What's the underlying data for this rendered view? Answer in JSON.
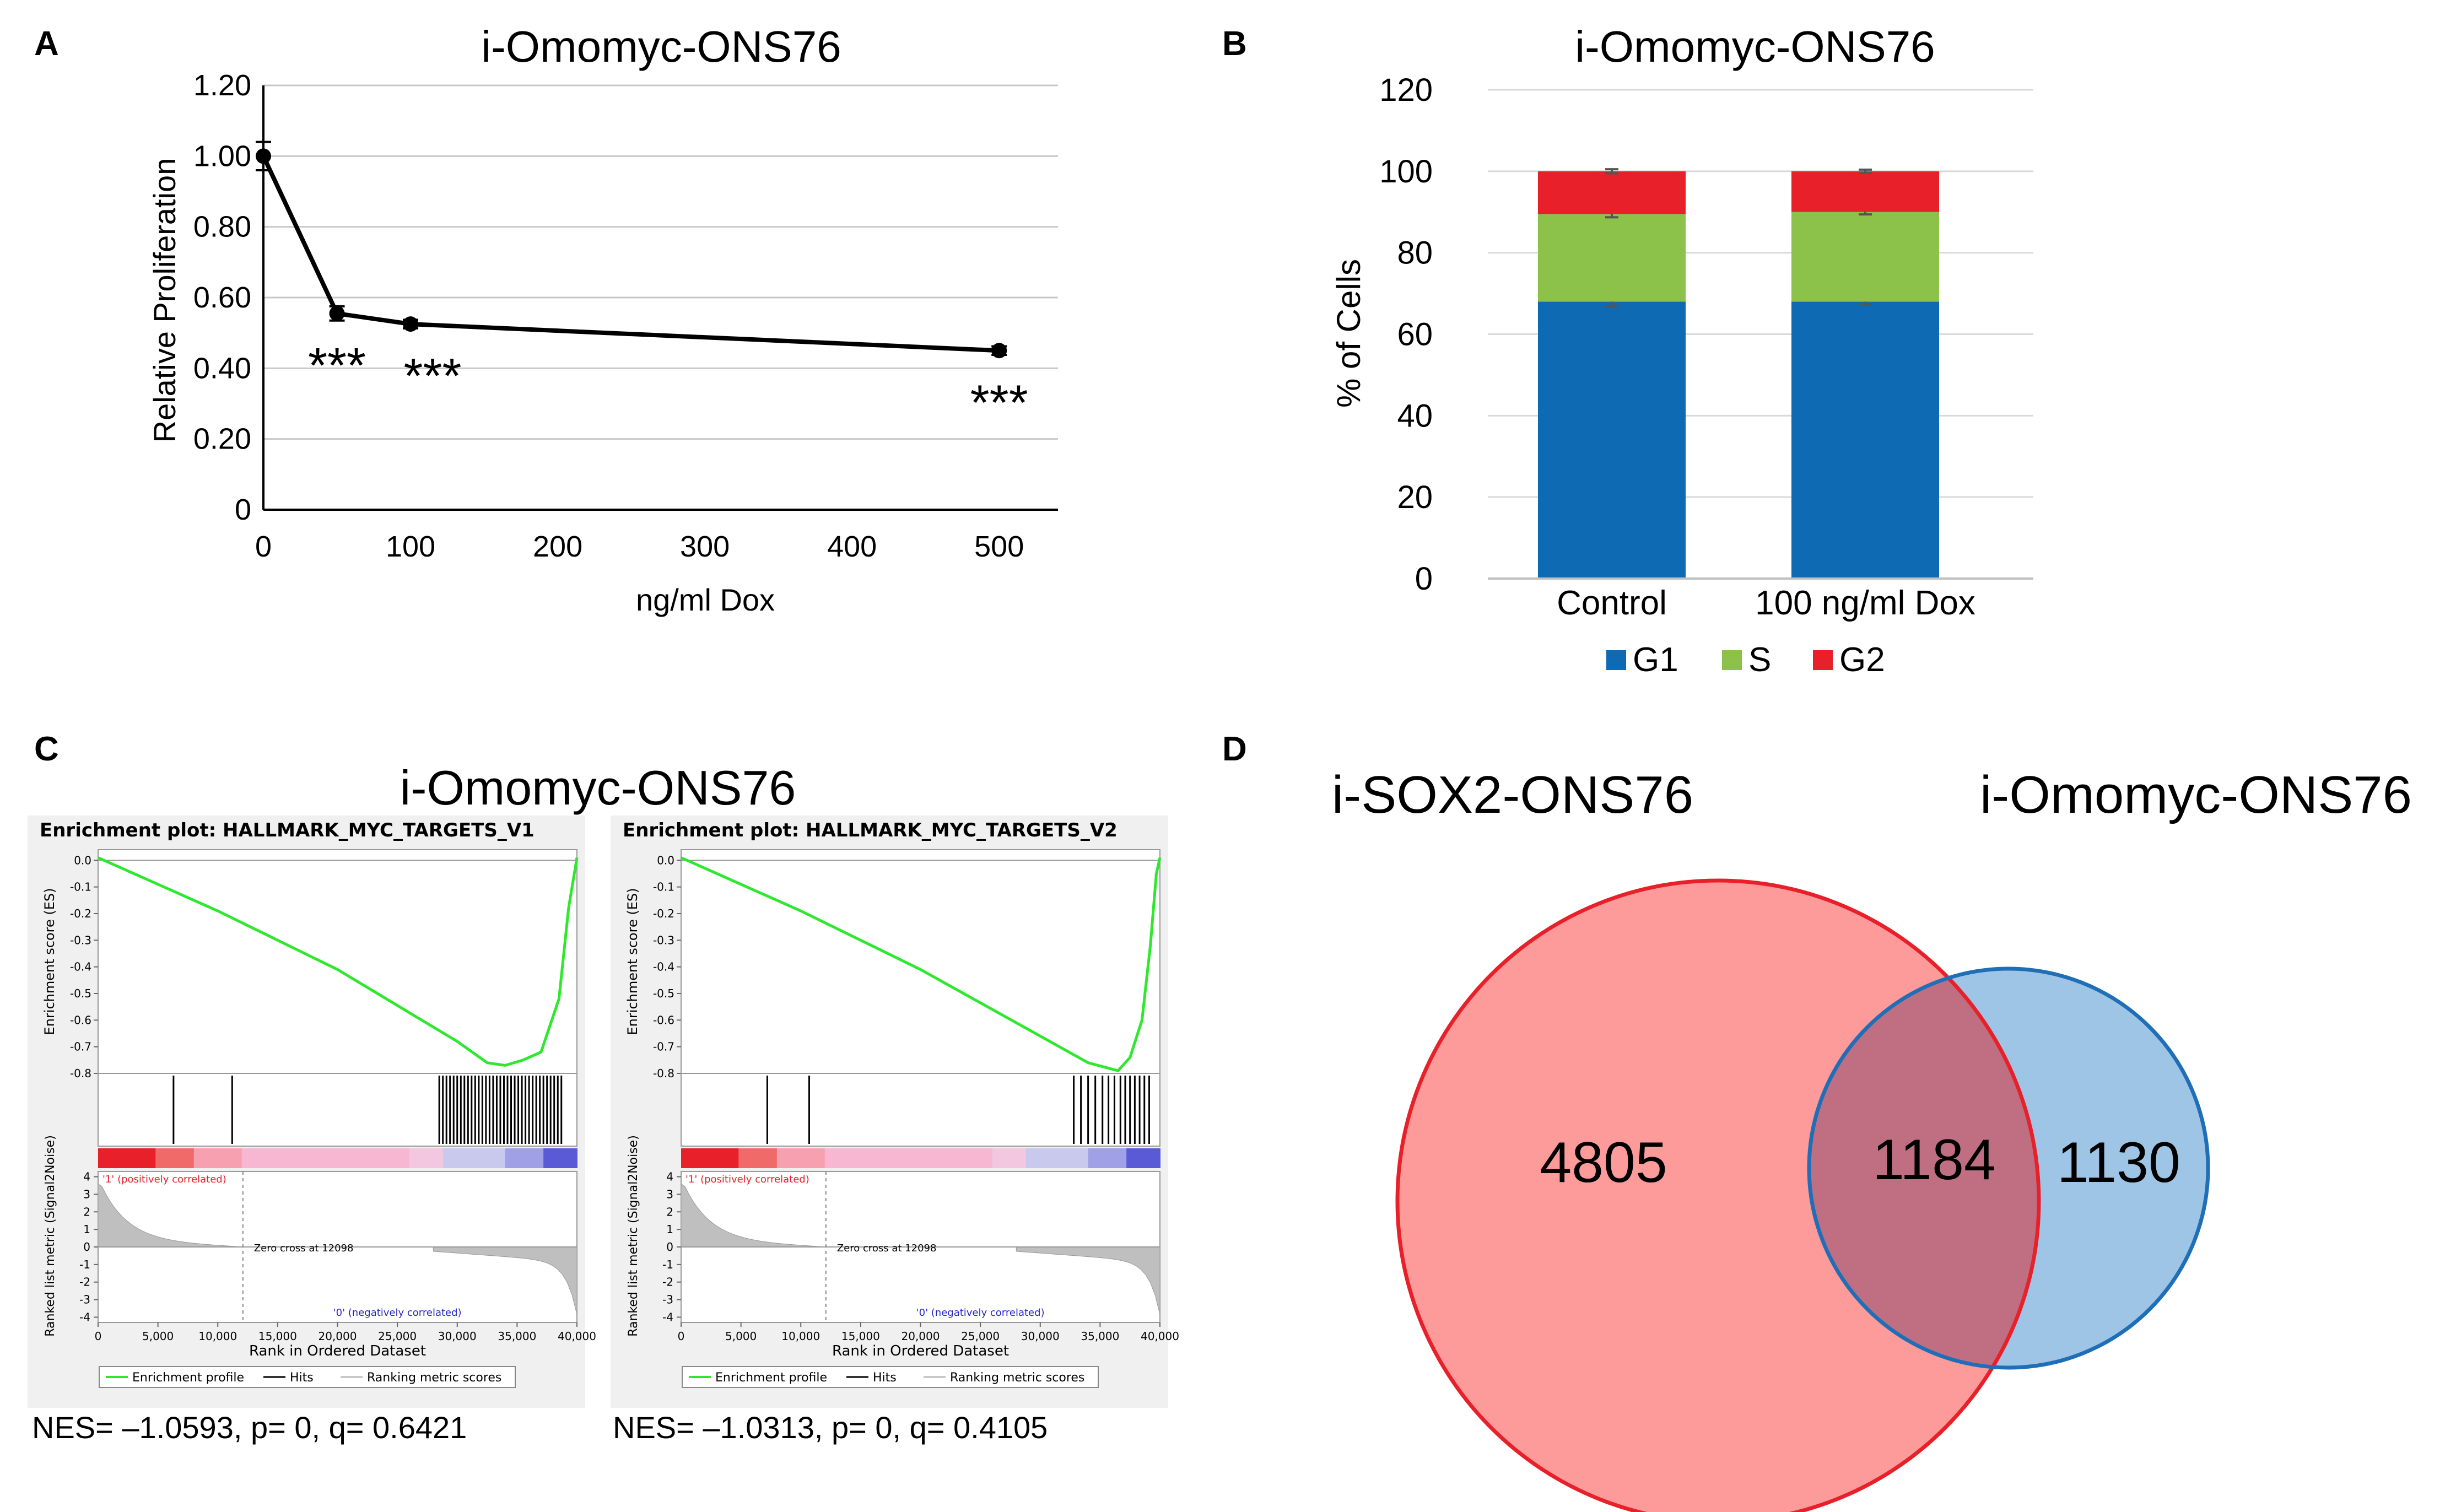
{
  "panel_labels": {
    "a": "A",
    "b": "B",
    "c": "C",
    "d": "D"
  },
  "chart_data": [
    {
      "panel": "A",
      "type": "line",
      "title": "i-Omomyc-ONS76",
      "xlabel": "ng/ml Dox",
      "ylabel": "Relative Proliferation",
      "x_ticks": [
        "0",
        "100",
        "200",
        "300",
        "400",
        "500"
      ],
      "y_ticks": [
        "0",
        "0.20",
        "0.40",
        "0.60",
        "0.80",
        "1.00",
        "1.20"
      ],
      "xlim": [
        0,
        540
      ],
      "ylim": [
        0,
        1.2
      ],
      "grid": true,
      "series": [
        {
          "name": "Relative Proliferation",
          "x": [
            0,
            50,
            100,
            500
          ],
          "y": [
            1.0,
            0.555,
            0.525,
            0.45
          ],
          "err": [
            0.04,
            0.02,
            0.012,
            0.012
          ]
        }
      ],
      "annotations": [
        {
          "x": 50,
          "y": 0.555,
          "text": "***"
        },
        {
          "x": 100,
          "y": 0.525,
          "text": "***"
        },
        {
          "x": 500,
          "y": 0.45,
          "text": "***"
        }
      ]
    },
    {
      "panel": "B",
      "type": "bar",
      "stacked": true,
      "title": "i-Omomyc-ONS76",
      "ylabel": "% of Cells",
      "categories": [
        "Control",
        "100 ng/ml Dox"
      ],
      "y_ticks": [
        "0",
        "20",
        "40",
        "60",
        "80",
        "100",
        "120"
      ],
      "ylim": [
        0,
        120
      ],
      "grid": true,
      "legend_position": "bottom",
      "series": [
        {
          "name": "G1",
          "values": [
            68,
            68
          ],
          "err": [
            1.2,
            0.6
          ],
          "color": "#0f6ab4"
        },
        {
          "name": "S",
          "values": [
            21.5,
            22
          ],
          "err": [
            0.8,
            0.6
          ],
          "color": "#8cc24a"
        },
        {
          "name": "G2",
          "values": [
            10.5,
            10
          ],
          "err": [
            0.5,
            0.4
          ],
          "color": "#e8202a"
        }
      ]
    },
    {
      "panel": "C",
      "type": "line",
      "title": "Enrichment plot: HALLMARK_MYC_TARGETS_V1",
      "xlabel": "Rank in Ordered Dataset",
      "ylabel": "Enrichment score (ES)",
      "ylabel2": "Ranked list metric (Signal2Noise)",
      "x_ticks": [
        "0",
        "5,000",
        "10,000",
        "15,000",
        "20,000",
        "25,000",
        "30,000",
        "35,000",
        "40,000"
      ],
      "es_ticks": [
        "0.0",
        "-0.1",
        "-0.2",
        "-0.3",
        "-0.4",
        "-0.5",
        "-0.6",
        "-0.7",
        "-0.8"
      ],
      "metric_ticks": [
        "4",
        "3",
        "2",
        "1",
        "0",
        "-1",
        "-2",
        "-3",
        "-4"
      ],
      "series": [
        {
          "name": "Enrichment profile",
          "x": [
            0,
            10000,
            20000,
            30000,
            32500,
            34000,
            35500,
            37000,
            38500,
            39300,
            40000
          ],
          "y": [
            0.01,
            -0.19,
            -0.41,
            -0.68,
            -0.76,
            -0.77,
            -0.75,
            -0.72,
            -0.52,
            -0.18,
            0.01
          ]
        }
      ],
      "hits": [
        6300,
        11200,
        28500,
        28800,
        29100,
        29400,
        29700,
        30000,
        30300,
        30600,
        30900,
        31200,
        31500,
        31800,
        32100,
        32400,
        32700,
        33000,
        33300,
        33600,
        33900,
        34200,
        34500,
        34800,
        35100,
        35400,
        35700,
        36000,
        36300,
        36600,
        36900,
        37200,
        37500,
        37800,
        38100,
        38400,
        38700
      ],
      "zero_cross_label": "Zero cross at 12098",
      "pos_label": "'1' (positively correlated)",
      "neg_label": "'0' (negatively correlated)",
      "legend": [
        "Enrichment profile",
        "Hits",
        "Ranking metric scores"
      ],
      "stats": "NES= –1.0593, p= 0, q= 0.6421"
    },
    {
      "panel": "C",
      "type": "line",
      "title": "Enrichment plot: HALLMARK_MYC_TARGETS_V2",
      "xlabel": "Rank in Ordered Dataset",
      "ylabel": "Enrichment score (ES)",
      "ylabel2": "Ranked list metric (Signal2Noise)",
      "x_ticks": [
        "0",
        "5,000",
        "10,000",
        "15,000",
        "20,000",
        "25,000",
        "30,000",
        "35,000",
        "40,000"
      ],
      "es_ticks": [
        "0.0",
        "-0.1",
        "-0.2",
        "-0.3",
        "-0.4",
        "-0.5",
        "-0.6",
        "-0.7",
        "-0.8"
      ],
      "metric_ticks": [
        "4",
        "3",
        "2",
        "1",
        "0",
        "-1",
        "-2",
        "-3",
        "-4"
      ],
      "series": [
        {
          "name": "Enrichment profile",
          "x": [
            0,
            10000,
            20000,
            30000,
            34000,
            36500,
            37500,
            38500,
            39200,
            39700,
            40000
          ],
          "y": [
            0.01,
            -0.19,
            -0.41,
            -0.66,
            -0.76,
            -0.79,
            -0.74,
            -0.6,
            -0.32,
            -0.05,
            0.01
          ]
        }
      ],
      "hits": [
        7200,
        10700,
        32800,
        33400,
        34000,
        34600,
        35200,
        35700,
        36200,
        36700,
        37100,
        37500,
        37900,
        38300,
        38700,
        39100
      ],
      "zero_cross_label": "Zero cross at 12098",
      "pos_label": "'1' (positively correlated)",
      "neg_label": "'0' (negatively correlated)",
      "legend": [
        "Enrichment profile",
        "Hits",
        "Ranking metric scores"
      ],
      "stats": "NES= –1.0313, p= 0, q= 0.4105"
    },
    {
      "panel": "D",
      "type": "venn",
      "sets": [
        {
          "name": "i-SOX2-ONS76",
          "only": 4805,
          "color": "#fd9a9a",
          "stroke": "#e8202a"
        },
        {
          "name": "i-Omomyc-ONS76",
          "only": 1130,
          "color": "#9fc5e6",
          "stroke": "#1f6fb8"
        }
      ],
      "overlap": 1184
    }
  ],
  "panel_c_title": "i-Omomyc-ONS76"
}
